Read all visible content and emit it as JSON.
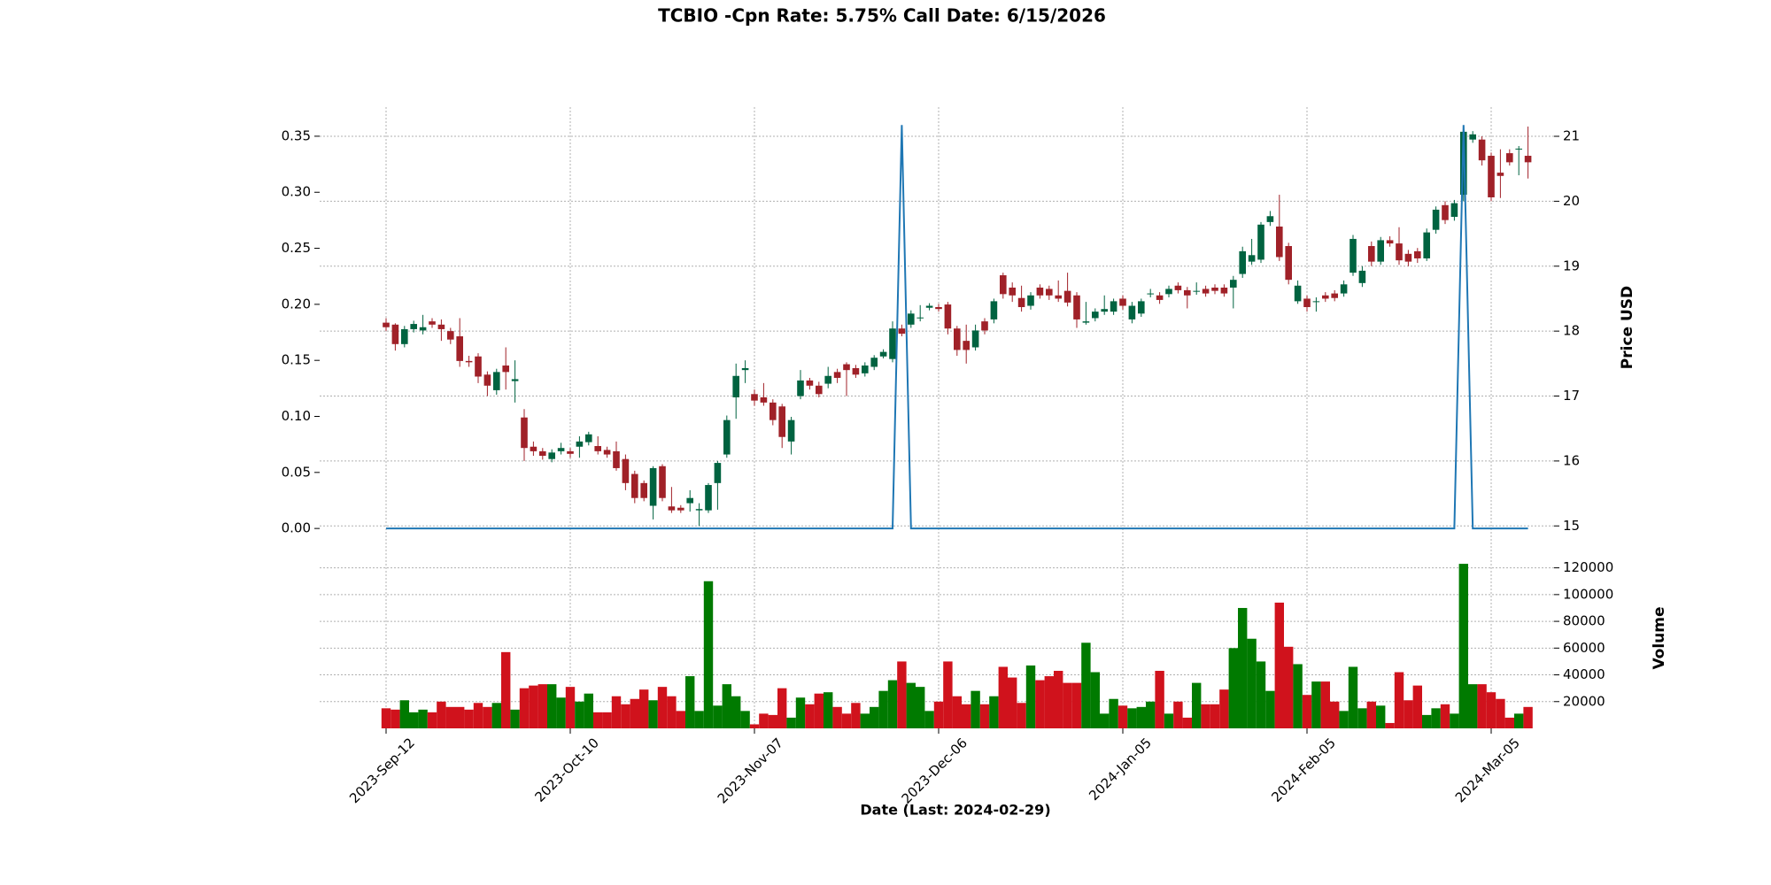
{
  "chart_data": {
    "type": "candlestick",
    "title": "TCBIO -Cpn Rate: 5.75% Call Date: 6/15/2026",
    "xlabel": "Date   (Last: 2024-02-29)",
    "categories": [
      "2023-Sep-12",
      null,
      null,
      null,
      null,
      null,
      null,
      null,
      null,
      null,
      null,
      null,
      null,
      null,
      null,
      null,
      null,
      null,
      null,
      null,
      "2023-Oct-10",
      null,
      null,
      null,
      null,
      null,
      null,
      null,
      null,
      null,
      null,
      null,
      null,
      null,
      null,
      null,
      null,
      null,
      null,
      null,
      "2023-Nov-07",
      null,
      null,
      null,
      null,
      null,
      null,
      null,
      null,
      null,
      null,
      null,
      null,
      null,
      null,
      null,
      null,
      null,
      null,
      null,
      "2023-Dec-06",
      null,
      null,
      null,
      null,
      null,
      null,
      null,
      null,
      null,
      null,
      null,
      null,
      null,
      null,
      null,
      null,
      null,
      null,
      null,
      "2024-Jan-05",
      null,
      null,
      null,
      null,
      null,
      null,
      null,
      null,
      null,
      null,
      null,
      null,
      null,
      null,
      null,
      null,
      null,
      null,
      null,
      "2024-Feb-05",
      null,
      null,
      null,
      null,
      null,
      null,
      null,
      null,
      null,
      null,
      null,
      null,
      null,
      null,
      null,
      null,
      null,
      null,
      null,
      "2024-Mar-05",
      null,
      null,
      null,
      null
    ],
    "open": [
      18.13,
      18.1,
      17.8,
      18.03,
      18.01,
      18.15,
      18.1,
      18.0,
      17.92,
      17.54,
      17.61,
      17.33,
      17.09,
      17.47,
      17.23,
      16.67,
      16.22,
      16.15,
      16.03,
      16.15,
      16.15,
      16.22,
      16.29,
      16.23,
      16.17,
      16.15,
      16.03,
      15.8,
      15.66,
      15.31,
      15.92,
      15.3,
      15.28,
      15.35,
      15.24,
      15.24,
      15.66,
      16.1,
      16.98,
      17.4,
      17.03,
      16.98,
      16.9,
      16.84,
      16.3,
      17.0,
      17.24,
      17.16,
      17.19,
      17.37,
      17.49,
      17.43,
      17.35,
      17.45,
      17.61,
      17.57,
      18.04,
      18.1,
      18.2,
      18.36,
      18.37,
      18.41,
      18.04,
      17.85,
      17.75,
      18.15,
      18.18,
      18.86,
      18.67,
      18.51,
      18.39,
      18.67,
      18.65,
      18.55,
      18.62,
      18.55,
      18.13,
      18.2,
      18.3,
      18.3,
      18.5,
      18.18,
      18.27,
      18.57,
      18.55,
      18.57,
      18.7,
      18.63,
      18.61,
      18.65,
      18.67,
      18.67,
      18.67,
      18.88,
      19.07,
      19.1,
      19.68,
      19.61,
      19.31,
      18.46,
      18.5,
      18.45,
      18.55,
      18.58,
      18.58,
      18.9,
      18.74,
      19.31,
      19.07,
      19.4,
      19.35,
      19.19,
      19.23,
      19.12,
      19.56,
      19.94,
      19.76,
      20.1,
      20.95,
      20.95,
      20.7,
      20.44,
      20.74,
      20.8,
      20.7
    ],
    "high": [
      18.2,
      18.12,
      18.08,
      18.16,
      18.25,
      18.2,
      18.18,
      18.05,
      18.2,
      17.62,
      17.66,
      17.38,
      17.42,
      17.75,
      17.55,
      16.8,
      16.3,
      16.2,
      16.18,
      16.28,
      16.2,
      16.38,
      16.45,
      16.38,
      16.22,
      16.3,
      16.1,
      15.85,
      15.7,
      15.92,
      15.95,
      15.6,
      15.32,
      15.55,
      15.35,
      15.66,
      16.0,
      16.7,
      17.5,
      17.55,
      17.1,
      17.2,
      16.95,
      16.88,
      16.68,
      17.4,
      17.28,
      17.22,
      17.45,
      17.42,
      17.52,
      17.48,
      17.52,
      17.63,
      17.72,
      18.15,
      18.1,
      18.32,
      18.4,
      18.43,
      18.42,
      18.45,
      18.08,
      18.1,
      18.1,
      18.2,
      18.5,
      18.9,
      18.75,
      18.7,
      18.6,
      18.72,
      18.7,
      18.78,
      18.9,
      18.6,
      18.45,
      18.35,
      18.55,
      18.5,
      18.55,
      18.45,
      18.5,
      18.65,
      18.6,
      18.7,
      18.75,
      18.68,
      18.75,
      18.7,
      18.72,
      18.72,
      18.85,
      19.3,
      19.42,
      19.68,
      19.85,
      20.1,
      19.36,
      18.78,
      18.55,
      18.52,
      18.6,
      18.63,
      18.78,
      19.48,
      19.0,
      19.38,
      19.45,
      19.46,
      19.6,
      19.25,
      19.28,
      19.58,
      19.92,
      20.0,
      20.02,
      21.12,
      21.08,
      21.0,
      20.75,
      20.8,
      20.8,
      20.85,
      21.15
    ],
    "low": [
      18.0,
      17.7,
      17.75,
      17.98,
      17.95,
      18.05,
      17.85,
      17.8,
      17.45,
      17.45,
      17.2,
      17.0,
      17.02,
      17.1,
      16.9,
      16.0,
      16.08,
      16.02,
      15.98,
      16.1,
      16.05,
      16.05,
      16.24,
      16.1,
      16.05,
      15.85,
      15.55,
      15.35,
      15.38,
      15.1,
      15.38,
      15.2,
      15.2,
      15.22,
      15.0,
      15.2,
      15.25,
      16.05,
      16.65,
      17.2,
      16.85,
      16.85,
      16.55,
      16.2,
      16.1,
      16.95,
      17.1,
      16.98,
      17.12,
      17.2,
      17.0,
      17.28,
      17.3,
      17.4,
      17.58,
      17.52,
      17.92,
      18.05,
      18.15,
      18.32,
      18.3,
      17.95,
      17.62,
      17.5,
      17.7,
      17.95,
      18.12,
      18.5,
      18.45,
      18.3,
      18.33,
      18.5,
      18.48,
      18.45,
      18.38,
      18.05,
      18.1,
      18.15,
      18.25,
      18.25,
      18.33,
      18.12,
      18.22,
      18.52,
      18.42,
      18.52,
      18.58,
      18.35,
      18.56,
      18.53,
      18.57,
      18.53,
      18.35,
      18.82,
      19.02,
      19.05,
      19.62,
      19.08,
      18.72,
      18.42,
      18.3,
      18.3,
      18.45,
      18.46,
      18.53,
      18.85,
      18.68,
      19.0,
      19.02,
      19.3,
      19.02,
      19.0,
      19.05,
      19.08,
      19.5,
      19.65,
      19.7,
      20.0,
      20.9,
      20.55,
      20.0,
      20.05,
      20.55,
      20.4,
      20.35
    ],
    "close": [
      18.06,
      17.8,
      18.03,
      18.11,
      18.06,
      18.1,
      18.03,
      17.87,
      17.54,
      17.52,
      17.3,
      17.16,
      17.37,
      17.37,
      17.26,
      16.2,
      16.15,
      16.08,
      16.13,
      16.2,
      16.11,
      16.3,
      16.41,
      16.15,
      16.1,
      15.89,
      15.66,
      15.43,
      15.43,
      15.89,
      15.43,
      15.24,
      15.24,
      15.43,
      15.26,
      15.63,
      15.97,
      16.63,
      17.31,
      17.43,
      16.93,
      16.9,
      16.63,
      16.37,
      16.63,
      17.24,
      17.16,
      17.03,
      17.31,
      17.28,
      17.4,
      17.33,
      17.47,
      17.59,
      17.68,
      18.04,
      17.96,
      18.27,
      18.21,
      18.39,
      18.34,
      18.04,
      17.71,
      17.71,
      18.01,
      18.01,
      18.46,
      18.57,
      18.55,
      18.37,
      18.55,
      18.55,
      18.55,
      18.5,
      18.44,
      18.18,
      18.15,
      18.3,
      18.34,
      18.46,
      18.39,
      18.39,
      18.46,
      18.58,
      18.48,
      18.65,
      18.63,
      18.55,
      18.62,
      18.58,
      18.62,
      18.58,
      18.79,
      19.23,
      19.17,
      19.64,
      19.77,
      19.14,
      18.79,
      18.7,
      18.37,
      18.46,
      18.5,
      18.51,
      18.72,
      19.42,
      18.93,
      19.07,
      19.4,
      19.35,
      19.09,
      19.07,
      19.12,
      19.52,
      19.87,
      19.71,
      19.97,
      21.07,
      21.03,
      20.63,
      20.06,
      20.39,
      20.6,
      20.81,
      20.6
    ],
    "up_color": "#006340",
    "down_color": "#a02128",
    "line": {
      "color": "#1f77b4",
      "values": [
        0,
        0,
        0,
        0,
        0,
        0,
        0,
        0,
        0,
        0,
        0,
        0,
        0,
        0,
        0,
        0,
        0,
        0,
        0,
        0,
        0,
        0,
        0,
        0,
        0,
        0,
        0,
        0,
        0,
        0,
        0,
        0,
        0,
        0,
        0,
        0,
        0,
        0,
        0,
        0,
        0,
        0,
        0,
        0,
        0,
        0,
        0,
        0,
        0,
        0,
        0,
        0,
        0,
        0,
        0,
        0,
        0.36,
        0,
        0,
        0,
        0,
        0,
        0,
        0,
        0,
        0,
        0,
        0,
        0,
        0,
        0,
        0,
        0,
        0,
        0,
        0,
        0,
        0,
        0,
        0,
        0,
        0,
        0,
        0,
        0,
        0,
        0,
        0,
        0,
        0,
        0,
        0,
        0,
        0,
        0,
        0,
        0,
        0,
        0,
        0,
        0,
        0,
        0,
        0,
        0,
        0,
        0,
        0,
        0,
        0,
        0,
        0,
        0,
        0,
        0,
        0,
        0,
        0.36,
        0,
        0,
        0,
        0,
        0,
        0,
        0
      ]
    },
    "ylim": [
      -0.007,
      0.376
    ],
    "yticks": [
      {
        "value": 0,
        "label": "0.00"
      },
      {
        "value": 0.05,
        "label": "0.05"
      },
      {
        "value": 0.1,
        "label": "0.10"
      },
      {
        "value": 0.15,
        "label": "0.15"
      },
      {
        "value": 0.2,
        "label": "0.20"
      },
      {
        "value": 0.25,
        "label": "0.25"
      },
      {
        "value": 0.3,
        "label": "0.30"
      },
      {
        "value": 0.35,
        "label": "0.35"
      }
    ],
    "y2lim": [
      14.84,
      21.45
    ],
    "y2ticks": [
      15,
      16,
      17,
      18,
      19,
      20,
      21
    ],
    "y2label": "Price USD",
    "volume": {
      "ylabel": "Volume",
      "up_color": "#007a00",
      "down_color": "#d0121c",
      "ylim": [
        0,
        131000
      ],
      "yticks": [
        20000,
        40000,
        60000,
        80000,
        100000,
        120000
      ],
      "values": [
        15000,
        14000,
        21000,
        12000,
        14000,
        12000,
        20000,
        16000,
        16000,
        14000,
        19000,
        16000,
        19000,
        57000,
        14000,
        30000,
        32000,
        33000,
        33000,
        23000,
        31000,
        20000,
        26000,
        12000,
        12000,
        24000,
        18000,
        22000,
        29000,
        21000,
        31000,
        24000,
        13000,
        39000,
        13000,
        110000,
        17000,
        33000,
        24000,
        13000,
        3000,
        11000,
        10000,
        30000,
        8000,
        23000,
        18000,
        26000,
        27000,
        16000,
        11000,
        19000,
        11000,
        16000,
        28000,
        36000,
        50000,
        34000,
        31000,
        13000,
        20000,
        50000,
        24000,
        18000,
        28000,
        18000,
        24000,
        46000,
        38000,
        19000,
        47000,
        36000,
        39000,
        43000,
        34000,
        34000,
        64000,
        42000,
        11000,
        22000,
        17000,
        15000,
        16000,
        20000,
        43000,
        11000,
        20000,
        8000,
        34000,
        18000,
        18000,
        29000,
        60000,
        90000,
        67000,
        50000,
        28000,
        94000,
        61000,
        48000,
        25000,
        35000,
        35000,
        20000,
        13000,
        46000,
        15000,
        20000,
        17000,
        4000,
        42000,
        21000,
        32000,
        10000,
        15000,
        18000,
        11000,
        123000,
        33000,
        33000,
        27000,
        22000,
        8000,
        11000,
        16000
      ]
    },
    "grid": true
  }
}
